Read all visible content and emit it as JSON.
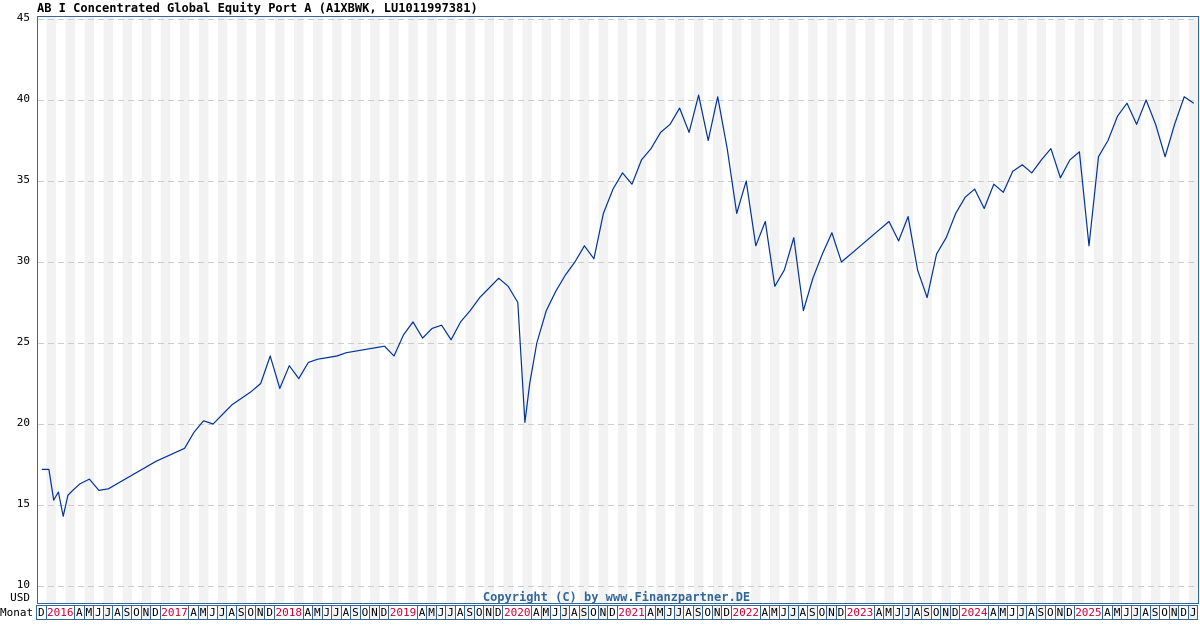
{
  "header": {
    "title": "AB I Concentrated Global Equity Port A (A1XBWK, LU1011997381)"
  },
  "footer": {
    "copyright": "Copyright (C) by www.Finanzpartner.DE",
    "currency_label": "USD",
    "month_row_label": "Monat"
  },
  "colors": {
    "line": "#003399",
    "frame": "#336699",
    "year_label": "#cc0033",
    "stripe": "#f2f2f2",
    "grid": "#cccccc",
    "copyright": "#336699"
  },
  "y_axis": {
    "ticks": [
      "45",
      "40",
      "35",
      "30",
      "25",
      "20",
      "15",
      "10"
    ]
  },
  "month_axis": {
    "labels": [
      "D",
      "2016",
      "A",
      "M",
      "J",
      "J",
      "A",
      "S",
      "O",
      "N",
      "D",
      "2017",
      "A",
      "M",
      "J",
      "J",
      "A",
      "S",
      "O",
      "N",
      "D",
      "2018",
      "A",
      "M",
      "J",
      "J",
      "A",
      "S",
      "O",
      "N",
      "D",
      "2019",
      "A",
      "M",
      "J",
      "J",
      "A",
      "S",
      "O",
      "N",
      "D",
      "2020",
      "A",
      "M",
      "J",
      "J",
      "A",
      "S",
      "O",
      "N",
      "D",
      "2021",
      "A",
      "M",
      "J",
      "J",
      "A",
      "S",
      "O",
      "N",
      "D",
      "2022",
      "A",
      "M",
      "J",
      "J",
      "A",
      "S",
      "O",
      "N",
      "D",
      "2023",
      "A",
      "M",
      "J",
      "J",
      "A",
      "S",
      "O",
      "N",
      "D",
      "2024",
      "A",
      "M",
      "J",
      "J",
      "A",
      "S",
      "O",
      "N",
      "D",
      "2025",
      "A",
      "M",
      "J",
      "J",
      "A",
      "S",
      "O",
      "N",
      "D",
      "J"
    ]
  },
  "chart_data": {
    "type": "line",
    "title": "AB I Concentrated Global Equity Port A (A1XBWK, LU1011997381)",
    "xlabel": "Monat",
    "ylabel": "USD",
    "ylim": [
      10,
      45
    ],
    "yticks": [
      10,
      15,
      20,
      25,
      30,
      35,
      40,
      45
    ],
    "grid": true,
    "legend": null,
    "x_range": [
      "2015-12",
      "2026-01"
    ],
    "series": [
      {
        "name": "AB I Concentrated Global Equity Port A",
        "x": [
          "2015-12",
          "2016-01",
          "2016-01",
          "2016-02",
          "2016-02",
          "2016-03",
          "2016-03",
          "2016-04",
          "2016-05",
          "2016-06",
          "2016-07",
          "2016-12",
          "2017-03",
          "2017-04",
          "2017-05",
          "2017-06",
          "2017-07",
          "2017-08",
          "2017-09",
          "2017-10",
          "2017-11",
          "2017-12",
          "2018-01",
          "2018-02",
          "2018-03",
          "2018-04",
          "2018-05",
          "2018-06",
          "2018-07",
          "2018-08",
          "2018-12",
          "2019-01",
          "2019-02",
          "2019-03",
          "2019-04",
          "2019-05",
          "2019-06",
          "2019-07",
          "2019-08",
          "2019-09",
          "2019-10",
          "2019-11",
          "2019-12",
          "2020-01",
          "2020-02",
          "2020-03",
          "2020-03",
          "2020-04",
          "2020-05",
          "2020-06",
          "2020-07",
          "2020-08",
          "2020-09",
          "2020-10",
          "2020-11",
          "2020-12",
          "2021-01",
          "2021-02",
          "2021-03",
          "2021-04",
          "2021-05",
          "2021-06",
          "2021-07",
          "2021-08",
          "2021-09",
          "2021-10",
          "2021-11",
          "2021-12",
          "2022-01",
          "2022-02",
          "2022-03",
          "2022-04",
          "2022-05",
          "2022-06",
          "2022-07",
          "2022-08",
          "2022-09",
          "2022-10",
          "2022-11",
          "2022-12",
          "2023-01",
          "2023-02",
          "2023-03",
          "2023-04",
          "2023-05",
          "2023-06",
          "2023-07",
          "2023-08",
          "2023-09",
          "2023-10",
          "2023-11",
          "2023-12",
          "2024-01",
          "2024-02",
          "2024-03",
          "2024-04",
          "2024-05",
          "2024-06",
          "2024-07",
          "2024-08",
          "2024-09",
          "2024-10",
          "2024-11",
          "2024-12",
          "2025-01",
          "2025-02",
          "2025-03",
          "2025-04",
          "2025-05",
          "2025-06",
          "2025-07",
          "2025-08",
          "2025-09",
          "2025-10",
          "2025-11",
          "2025-12",
          "2026-01"
        ],
        "values": [
          17.2,
          17.2,
          15.3,
          15.8,
          14.3,
          15.6,
          15.9,
          16.3,
          16.6,
          15.9,
          16.0,
          17.7,
          18.5,
          19.5,
          20.2,
          20.0,
          20.6,
          21.2,
          21.6,
          22.0,
          22.5,
          24.2,
          22.2,
          23.6,
          22.8,
          23.8,
          24.0,
          24.1,
          24.2,
          24.4,
          24.8,
          24.2,
          25.5,
          26.3,
          25.3,
          25.9,
          26.1,
          25.2,
          26.3,
          27.0,
          27.8,
          28.4,
          29.0,
          28.5,
          27.5,
          20.1,
          22.5,
          25.0,
          27.0,
          28.2,
          29.2,
          30.0,
          31.0,
          30.2,
          33.0,
          34.5,
          35.5,
          34.8,
          36.3,
          37.0,
          38.0,
          38.5,
          39.5,
          38.0,
          40.3,
          37.5,
          40.2,
          37.0,
          33.0,
          35.0,
          31.0,
          32.5,
          28.5,
          29.5,
          31.5,
          27.0,
          29.0,
          30.5,
          31.8,
          30.0,
          30.5,
          31.0,
          31.5,
          32.0,
          32.5,
          31.3,
          32.8,
          29.5,
          27.8,
          30.5,
          31.5,
          33.0,
          34.0,
          34.5,
          33.3,
          34.8,
          34.3,
          35.6,
          36.0,
          35.5,
          36.3,
          37.0,
          35.2,
          36.3,
          36.8,
          31.0,
          36.5,
          37.5,
          39.0,
          39.8,
          38.5,
          40.0,
          38.5,
          36.5,
          38.5,
          40.2,
          39.8
        ]
      }
    ]
  }
}
